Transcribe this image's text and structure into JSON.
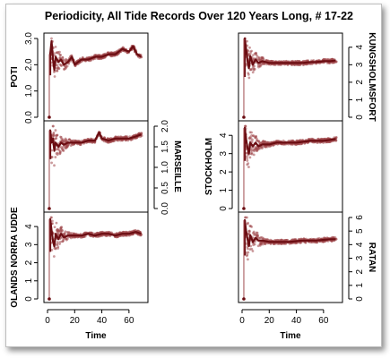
{
  "chart_data": {
    "type": "scatter",
    "title": "Periodicity, All Tide Records Over 120 Years Long, # 17-22",
    "xlabel": "Time",
    "xlim": [
      0,
      70
    ],
    "xticks": [
      0,
      20,
      40,
      60
    ],
    "xtick_labels": [
      "0",
      "20",
      "40",
      "60"
    ],
    "panels": [
      {
        "name": "POTI",
        "column": "left",
        "row": 0,
        "axis_side": "left",
        "ylim": [
          0,
          3.0
        ],
        "yticks": [
          0.0,
          1.0,
          2.0,
          3.0
        ],
        "ytick_labels": [
          "0.0",
          "1.0",
          "2.0",
          "3.0"
        ],
        "points": [
          [
            1,
            0.0
          ],
          [
            1,
            0.3
          ],
          [
            2,
            1.6
          ],
          [
            2,
            2.4
          ],
          [
            3,
            2.9
          ],
          [
            4,
            2.2
          ],
          [
            5,
            1.8
          ],
          [
            6,
            2.3
          ],
          [
            8,
            2.1
          ],
          [
            10,
            2.2
          ],
          [
            12,
            2.0
          ],
          [
            15,
            2.1
          ],
          [
            18,
            2.3
          ],
          [
            20,
            2.0
          ],
          [
            25,
            2.2
          ],
          [
            30,
            2.2
          ],
          [
            35,
            2.3
          ],
          [
            40,
            2.3
          ],
          [
            45,
            2.4
          ],
          [
            50,
            2.4
          ],
          [
            55,
            2.6
          ],
          [
            60,
            2.5
          ],
          [
            63,
            2.7
          ],
          [
            66,
            2.4
          ],
          [
            69,
            2.3
          ]
        ]
      },
      {
        "name": "MARSEILLE",
        "column": "left",
        "row": 1,
        "axis_side": "right",
        "ylim": [
          0,
          2.0
        ],
        "yticks": [
          0.0,
          0.5,
          1.0,
          1.5,
          2.0
        ],
        "ytick_labels": [
          "0.0",
          "0.5",
          "1.0",
          "1.5",
          "2.0"
        ],
        "points": [
          [
            1,
            0.0
          ],
          [
            1,
            0.4
          ],
          [
            2,
            1.2
          ],
          [
            2,
            1.9
          ],
          [
            3,
            1.6
          ],
          [
            4,
            1.7
          ],
          [
            5,
            1.4
          ],
          [
            6,
            1.6
          ],
          [
            8,
            1.5
          ],
          [
            10,
            1.6
          ],
          [
            12,
            1.55
          ],
          [
            15,
            1.6
          ],
          [
            20,
            1.6
          ],
          [
            25,
            1.6
          ],
          [
            30,
            1.65
          ],
          [
            35,
            1.65
          ],
          [
            38,
            1.85
          ],
          [
            40,
            1.7
          ],
          [
            45,
            1.65
          ],
          [
            50,
            1.7
          ],
          [
            55,
            1.7
          ],
          [
            60,
            1.7
          ],
          [
            65,
            1.75
          ],
          [
            69,
            1.8
          ]
        ]
      },
      {
        "name": "OLANDS NORRA UDDE",
        "column": "left",
        "row": 2,
        "axis_side": "left",
        "ylim": [
          0,
          4.5
        ],
        "yticks": [
          0,
          1,
          2,
          3,
          4
        ],
        "ytick_labels": [
          "0",
          "1",
          "2",
          "3",
          "4"
        ],
        "points": [
          [
            1,
            0.0
          ],
          [
            1,
            0.6
          ],
          [
            2,
            2.6
          ],
          [
            2,
            4.4
          ],
          [
            3,
            3.8
          ],
          [
            4,
            3.2
          ],
          [
            5,
            2.9
          ],
          [
            6,
            3.6
          ],
          [
            8,
            3.3
          ],
          [
            10,
            3.6
          ],
          [
            12,
            3.4
          ],
          [
            15,
            3.5
          ],
          [
            20,
            3.5
          ],
          [
            25,
            3.5
          ],
          [
            30,
            3.6
          ],
          [
            35,
            3.5
          ],
          [
            40,
            3.6
          ],
          [
            45,
            3.6
          ],
          [
            50,
            3.5
          ],
          [
            55,
            3.6
          ],
          [
            60,
            3.6
          ],
          [
            65,
            3.7
          ],
          [
            69,
            3.6
          ]
        ]
      },
      {
        "name": "KUNGSHOLMSFORT",
        "column": "right",
        "row": 0,
        "axis_side": "right",
        "ylim": [
          0,
          4.5
        ],
        "yticks": [
          0,
          1,
          2,
          3,
          4
        ],
        "ytick_labels": [
          "0",
          "1",
          "2",
          "3",
          "4"
        ],
        "points": [
          [
            1,
            0.0
          ],
          [
            1,
            0.5
          ],
          [
            2,
            2.3
          ],
          [
            2,
            4.5
          ],
          [
            3,
            3.9
          ],
          [
            4,
            3.2
          ],
          [
            5,
            2.8
          ],
          [
            6,
            3.5
          ],
          [
            8,
            3.0
          ],
          [
            10,
            3.3
          ],
          [
            12,
            3.1
          ],
          [
            15,
            3.2
          ],
          [
            20,
            3.1
          ],
          [
            25,
            3.1
          ],
          [
            30,
            3.1
          ],
          [
            35,
            3.1
          ],
          [
            40,
            3.1
          ],
          [
            45,
            3.1
          ],
          [
            50,
            3.15
          ],
          [
            55,
            3.15
          ],
          [
            60,
            3.2
          ],
          [
            65,
            3.2
          ],
          [
            69,
            3.25
          ]
        ]
      },
      {
        "name": "STOCKHOLM",
        "column": "right",
        "row": 1,
        "axis_side": "left",
        "ylim": [
          0,
          4.5
        ],
        "yticks": [
          0,
          1,
          2,
          3,
          4
        ],
        "ytick_labels": [
          "0",
          "1",
          "2",
          "3",
          "4"
        ],
        "points": [
          [
            1,
            0.0
          ],
          [
            1,
            0.5
          ],
          [
            2,
            2.6
          ],
          [
            2,
            4.4
          ],
          [
            3,
            3.8
          ],
          [
            4,
            3.3
          ],
          [
            5,
            3.0
          ],
          [
            6,
            3.6
          ],
          [
            8,
            3.4
          ],
          [
            10,
            3.6
          ],
          [
            12,
            3.4
          ],
          [
            15,
            3.5
          ],
          [
            20,
            3.5
          ],
          [
            25,
            3.6
          ],
          [
            30,
            3.6
          ],
          [
            35,
            3.6
          ],
          [
            40,
            3.6
          ],
          [
            45,
            3.65
          ],
          [
            50,
            3.7
          ],
          [
            55,
            3.7
          ],
          [
            60,
            3.7
          ],
          [
            65,
            3.75
          ],
          [
            69,
            3.8
          ]
        ]
      },
      {
        "name": "RATAN",
        "column": "right",
        "row": 2,
        "axis_side": "right",
        "ylim": [
          0,
          6.0
        ],
        "yticks": [
          0,
          1,
          2,
          3,
          4,
          5,
          6
        ],
        "ytick_labels": [
          "0",
          "1",
          "2",
          "3",
          "4",
          "5",
          "6"
        ],
        "points": [
          [
            1,
            0.0
          ],
          [
            1,
            0.7
          ],
          [
            2,
            3.2
          ],
          [
            2,
            5.8
          ],
          [
            3,
            5.0
          ],
          [
            4,
            4.4
          ],
          [
            5,
            3.9
          ],
          [
            6,
            4.7
          ],
          [
            8,
            4.2
          ],
          [
            10,
            4.5
          ],
          [
            12,
            4.3
          ],
          [
            15,
            4.3
          ],
          [
            20,
            4.2
          ],
          [
            25,
            4.2
          ],
          [
            30,
            4.2
          ],
          [
            35,
            4.2
          ],
          [
            40,
            4.25
          ],
          [
            45,
            4.3
          ],
          [
            50,
            4.3
          ],
          [
            55,
            4.3
          ],
          [
            60,
            4.35
          ],
          [
            65,
            4.4
          ],
          [
            69,
            4.4
          ]
        ]
      }
    ],
    "grid": false,
    "legend": "none",
    "series_color": "#6b0d12",
    "point_color": "#a0484d"
  }
}
